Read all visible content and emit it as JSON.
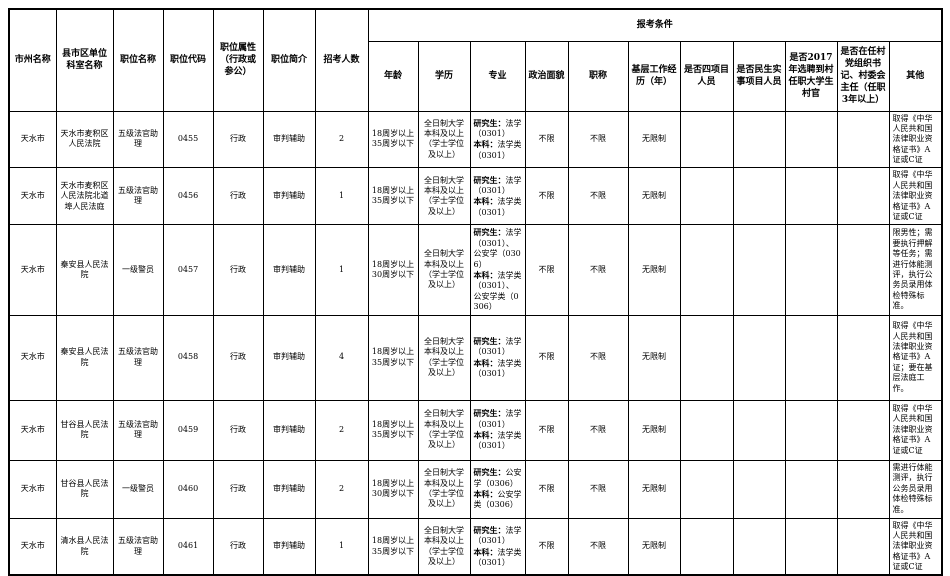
{
  "table": {
    "condition_header": "报考条件",
    "main_columns": {
      "city": "市州名称",
      "unit": "县市区单位科室名称",
      "position": "职位名称",
      "code": "职位代码",
      "attribute": "职位属性（行政或参公）",
      "intro": "职位简介",
      "count": "招考人数"
    },
    "condition_columns": {
      "age": "年龄",
      "education": "学历",
      "major": "专业",
      "political": "政治面貌",
      "title": "职称",
      "experience": "基层工作经历（年）",
      "four_project": "是否四项目人员",
      "livelihood": "是否民生实事项目人员",
      "village_2017": "是否2017年选聘到村任职大学生村官",
      "village_secretary": "是否在任村党组织书记、村委会主任（任职3年以上）",
      "other": "其他"
    },
    "major_labels": {
      "graduate": "研究生：",
      "undergraduate": "本科："
    },
    "rows": [
      {
        "city": "天水市",
        "unit": "天水市麦积区人民法院",
        "position": "五级法官助理",
        "code": "0455",
        "attribute": "行政",
        "intro": "审判辅助",
        "count": "2",
        "age": "18周岁以上35周岁以下",
        "education": "全日制大学本科及以上（学士学位及以上）",
        "major_graduate": "法学（0301）",
        "major_undergraduate": "法学类（0301）",
        "political": "不限",
        "title": "不限",
        "experience": "无限制",
        "four_project": "",
        "livelihood": "",
        "village_2017": "",
        "village_secretary": "",
        "other": "取得《中华人民共和国法律职业资格证书》A证或C证"
      },
      {
        "city": "天水市",
        "unit": "天水市麦积区人民法院北道埠人民法庭",
        "position": "五级法官助理",
        "code": "0456",
        "attribute": "行政",
        "intro": "审判辅助",
        "count": "1",
        "age": "18周岁以上35周岁以下",
        "education": "全日制大学本科及以上（学士学位及以上）",
        "major_graduate": "法学（0301）",
        "major_undergraduate": "法学类（0301）",
        "political": "不限",
        "title": "不限",
        "experience": "无限制",
        "four_project": "",
        "livelihood": "",
        "village_2017": "",
        "village_secretary": "",
        "other": "取得《中华人民共和国法律职业资格证书》A证或C证"
      },
      {
        "city": "天水市",
        "unit": "秦安县人民法院",
        "position": "一级警员",
        "code": "0457",
        "attribute": "行政",
        "intro": "审判辅助",
        "count": "1",
        "age": "18周岁以上30周岁以下",
        "education": "全日制大学本科及以上（学士学位及以上）",
        "major_graduate": "法学（0301）、公安学（0306）",
        "major_undergraduate": "法学类（0301）、公安学类（0306）",
        "political": "不限",
        "title": "不限",
        "experience": "无限制",
        "four_project": "",
        "livelihood": "",
        "village_2017": "",
        "village_secretary": "",
        "other": "限男性；需要执行押解等任务；需进行体能测评，执行公务员录用体检特殊标准。"
      },
      {
        "city": "天水市",
        "unit": "秦安县人民法院",
        "position": "五级法官助理",
        "code": "0458",
        "attribute": "行政",
        "intro": "审判辅助",
        "count": "4",
        "age": "18周岁以上35周岁以下",
        "education": "全日制大学本科及以上（学士学位及以上）",
        "major_graduate": "法学（0301）",
        "major_undergraduate": "法学类（0301）",
        "political": "不限",
        "title": "不限",
        "experience": "无限制",
        "four_project": "",
        "livelihood": "",
        "village_2017": "",
        "village_secretary": "",
        "other": "取得《中华人民共和国法律职业资格证书》A证；要在基层法庭工作。"
      },
      {
        "city": "天水市",
        "unit": "甘谷县人民法院",
        "position": "五级法官助理",
        "code": "0459",
        "attribute": "行政",
        "intro": "审判辅助",
        "count": "2",
        "age": "18周岁以上35周岁以下",
        "education": "全日制大学本科及以上（学士学位及以上）",
        "major_graduate": "法学（0301）",
        "major_undergraduate": "法学类（0301）",
        "political": "不限",
        "title": "不限",
        "experience": "无限制",
        "four_project": "",
        "livelihood": "",
        "village_2017": "",
        "village_secretary": "",
        "other": "取得《中华人民共和国法律职业资格证书》A证或C证"
      },
      {
        "city": "天水市",
        "unit": "甘谷县人民法院",
        "position": "一级警员",
        "code": "0460",
        "attribute": "行政",
        "intro": "审判辅助",
        "count": "2",
        "age": "18周岁以上30周岁以下",
        "education": "全日制大学本科及以上（学士学位及以上）",
        "major_graduate": "公安学（0306）",
        "major_undergraduate": "公安学类（0306）",
        "political": "不限",
        "title": "不限",
        "experience": "无限制",
        "four_project": "",
        "livelihood": "",
        "village_2017": "",
        "village_secretary": "",
        "other": "需进行体能测评，执行公务员录用体检特殊标准。"
      },
      {
        "city": "天水市",
        "unit": "清水县人民法院",
        "position": "五级法官助理",
        "code": "0461",
        "attribute": "行政",
        "intro": "审判辅助",
        "count": "1",
        "age": "18周岁以上35周岁以下",
        "education": "全日制大学本科及以上（学士学位及以上）",
        "major_graduate": "法学（0301）",
        "major_undergraduate": "法学类（0301）",
        "political": "不限",
        "title": "不限",
        "experience": "无限制",
        "four_project": "",
        "livelihood": "",
        "village_2017": "",
        "village_secretary": "",
        "other": "取得《中华人民共和国法律职业资格证书》A证或C证"
      }
    ]
  }
}
